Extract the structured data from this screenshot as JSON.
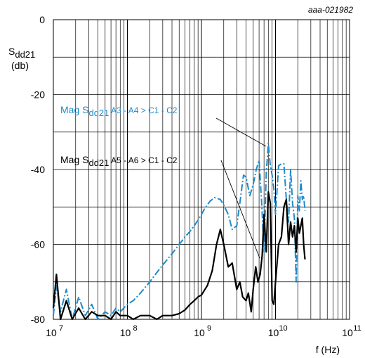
{
  "chart_data": {
    "type": "line",
    "figure_id": "aaa-021982",
    "ylabel_line1": "S",
    "ylabel_sub": "dd21",
    "ylabel_line2": "(db)",
    "xlabel": "f (Hz)",
    "x_scale": "log",
    "xlim": [
      10000000,
      100000000000
    ],
    "ylim": [
      -80,
      0
    ],
    "y_ticks": [
      "0",
      "-20",
      "-40",
      "-60",
      "-80"
    ],
    "x_tick_mantissa": "10",
    "x_tick_exponents": [
      "7",
      "8",
      "9",
      "10",
      "11"
    ],
    "grid": true,
    "series": [
      {
        "name_prefix": "Mag S",
        "name_sub": "dd21",
        "name_suffix": " A3 - A4 > C1 - C2",
        "color": "#1f8ac9",
        "style": "dash-dot",
        "x": [
          10000000,
          11000000,
          12500000,
          15000000,
          18000000,
          22000000,
          27000000,
          33000000,
          40000000,
          50000000,
          60000000,
          70000000,
          80000000,
          100000000,
          120000000,
          150000000,
          200000000,
          250000000,
          300000000,
          400000000,
          500000000,
          600000000,
          700000000,
          800000000,
          900000000,
          1000000000,
          1100000000,
          1300000000,
          1500000000,
          1800000000,
          2000000000,
          2300000000,
          2600000000,
          3000000000,
          3300000000,
          3700000000,
          4000000000,
          4500000000,
          5000000000,
          5500000000,
          6000000000,
          6500000000,
          7000000000,
          7500000000,
          8000000000,
          8500000000,
          9000000000,
          9500000000,
          10000000000,
          11000000000,
          12000000000,
          13000000000,
          14000000000,
          15000000000,
          16000000000,
          17000000000,
          18000000000,
          19000000000,
          20000000000,
          21000000000,
          22000000000,
          23000000000,
          24000000000,
          25000000000
        ],
        "y": [
          -79,
          -71,
          -78,
          -72,
          -80,
          -74,
          -79,
          -76,
          -80,
          -78,
          -79,
          -77,
          -78,
          -76,
          -75,
          -73,
          -70,
          -67.5,
          -65.5,
          -62.5,
          -60,
          -58,
          -56.5,
          -55,
          -53.5,
          -52,
          -50.5,
          -48.5,
          -47.5,
          -48,
          -49.5,
          -52,
          -56,
          -55,
          -49,
          -41.5,
          -42,
          -47,
          -44,
          -40,
          -37.5,
          -49,
          -62,
          -41,
          -33,
          -39,
          -41.5,
          -45,
          -52,
          -39,
          -38.5,
          -38.5,
          -48,
          -54,
          -40,
          -49,
          -53,
          -70,
          -47,
          -51,
          -43,
          -48,
          -47,
          -51
        ]
      },
      {
        "name_prefix": "Mag S",
        "name_sub": "dd21",
        "name_suffix": " A5 - A6 > C1 - C2",
        "color": "#000000",
        "style": "solid",
        "x": [
          10000000,
          11000000,
          12500000,
          15000000,
          18000000,
          22000000,
          27000000,
          33000000,
          40000000,
          50000000,
          60000000,
          70000000,
          80000000,
          100000000,
          120000000,
          150000000,
          200000000,
          250000000,
          300000000,
          400000000,
          500000000,
          600000000,
          700000000,
          800000000,
          900000000,
          1000000000,
          1200000000,
          1400000000,
          1600000000,
          1800000000,
          2000000000,
          2300000000,
          2600000000,
          3000000000,
          3300000000,
          3600000000,
          4000000000,
          4300000000,
          4700000000,
          5000000000,
          5400000000,
          5800000000,
          6200000000,
          6600000000,
          7000000000,
          7500000000,
          8000000000,
          8500000000,
          9000000000,
          9500000000,
          10000000000,
          11000000000,
          12000000000,
          13000000000,
          14000000000,
          15000000000,
          16000000000,
          17000000000,
          18000000000,
          19000000000,
          20000000000,
          21000000000,
          22000000000,
          23000000000,
          24000000000,
          25000000000
        ],
        "y": [
          -77,
          -68,
          -80,
          -75,
          -80,
          -77,
          -80,
          -78,
          -79,
          -79,
          -80,
          -78,
          -79,
          -79,
          -80,
          -79,
          -79,
          -80,
          -79,
          -79,
          -78.5,
          -77.5,
          -76,
          -75,
          -74,
          -73.5,
          -71,
          -67,
          -60,
          -56,
          -60,
          -66,
          -65,
          -72,
          -70,
          -74,
          -75,
          -73,
          -78,
          -72,
          -66,
          -70,
          -68,
          -63,
          -52,
          -62,
          -46,
          -49,
          -75,
          -76,
          -70,
          -60,
          -58,
          -50,
          -48,
          -60,
          -54,
          -58,
          -55,
          -62,
          -53,
          -57,
          -55,
          -53,
          -60,
          -64
        ]
      }
    ]
  }
}
